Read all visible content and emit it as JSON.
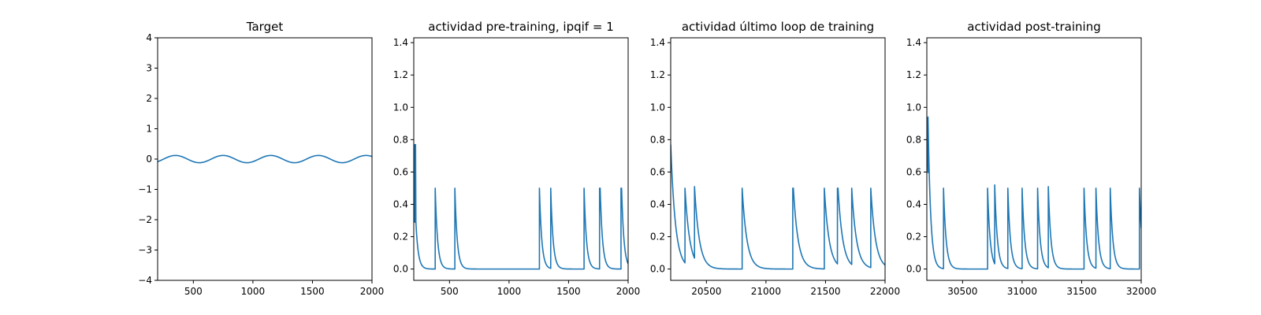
{
  "chart_data": [
    {
      "type": "line",
      "title": "Target",
      "xlim": [
        200,
        2000
      ],
      "ylim": [
        -4,
        4
      ],
      "xticks": [
        500,
        1000,
        1500,
        2000
      ],
      "yticks": [
        -4,
        -3,
        -2,
        -1,
        0,
        1,
        2,
        3,
        4
      ],
      "series": [
        {
          "color": "#1f77b4",
          "signal": "sine",
          "amplitude": 0.12,
          "period": 400,
          "phase_crest_at": 350
        }
      ]
    },
    {
      "type": "line",
      "title": "actividad pre-training, ipqif = 1",
      "xlim": [
        200,
        2000
      ],
      "ylim": [
        -0.07,
        1.43
      ],
      "xticks": [
        500,
        1000,
        1500,
        2000
      ],
      "yticks": [
        0.0,
        0.2,
        0.4,
        0.6,
        0.8,
        1.0,
        1.2,
        1.4
      ],
      "series": [
        {
          "color": "#1f77b4",
          "signal": "spike_decay",
          "decay": 20,
          "initial": [
            [
              205,
              0.77
            ],
            [
              215,
              0.77
            ]
          ],
          "spikes": [
            [
              380,
              0.5
            ],
            [
              545,
              0.5
            ],
            [
              1255,
              0.5
            ],
            [
              1350,
              0.5
            ],
            [
              1630,
              0.5
            ],
            [
              1760,
              0.5
            ],
            [
              1765,
              0.5
            ],
            [
              1940,
              0.5
            ],
            [
              1945,
              0.5
            ]
          ]
        }
      ]
    },
    {
      "type": "line",
      "title": "actividad último loop de training",
      "xlim": [
        20200,
        22000
      ],
      "ylim": [
        -0.07,
        1.43
      ],
      "xticks": [
        20500,
        21000,
        21500,
        22000
      ],
      "yticks": [
        0.0,
        0.2,
        0.4,
        0.6,
        0.8,
        1.0,
        1.2,
        1.4
      ],
      "series": [
        {
          "color": "#1f77b4",
          "signal": "spike_decay",
          "decay": 40,
          "start_value": 0.77,
          "spikes": [
            [
              20320,
              0.5
            ],
            [
              20400,
              0.51
            ],
            [
              20800,
              0.5
            ],
            [
              21225,
              0.5
            ],
            [
              21230,
              0.5
            ],
            [
              21490,
              0.5
            ],
            [
              21600,
              0.5
            ],
            [
              21605,
              0.5
            ],
            [
              21720,
              0.5
            ],
            [
              21880,
              0.5
            ]
          ]
        }
      ]
    },
    {
      "type": "line",
      "title": "actividad post-training",
      "xlim": [
        30200,
        32000
      ],
      "ylim": [
        -0.07,
        1.43
      ],
      "xticks": [
        30500,
        31000,
        31500,
        32000
      ],
      "yticks": [
        0.0,
        0.2,
        0.4,
        0.6,
        0.8,
        1.0,
        1.2,
        1.4
      ],
      "series": [
        {
          "color": "#1f77b4",
          "signal": "spike_decay",
          "decay": 22,
          "start_value": 0.94,
          "spikes": [
            [
              30210,
              0.94
            ],
            [
              30340,
              0.5
            ],
            [
              30710,
              0.5
            ],
            [
              30770,
              0.52
            ],
            [
              30880,
              0.5
            ],
            [
              31000,
              0.5
            ],
            [
              31130,
              0.5
            ],
            [
              31220,
              0.51
            ],
            [
              31520,
              0.5
            ],
            [
              31620,
              0.5
            ],
            [
              31740,
              0.5
            ],
            [
              31985,
              0.5
            ]
          ]
        }
      ]
    }
  ]
}
